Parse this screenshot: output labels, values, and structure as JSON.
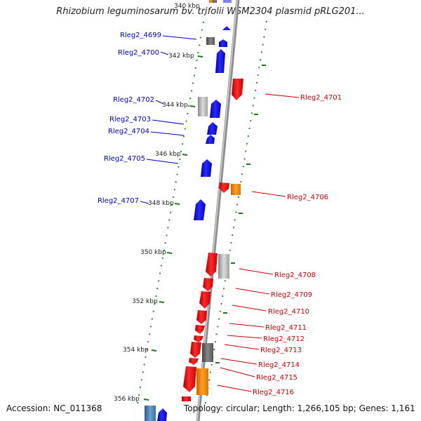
{
  "title": "Rhizobium leguminosarum bv. trifolii WSM2304 plasmid pRLG201...",
  "footer": {
    "accession_label": "Accession:",
    "accession": "NC_011368",
    "topology_label": "Topology:",
    "topology": "circular",
    "length_label": "Length:",
    "length": "1,266,105 bp",
    "genes_label": "Genes:",
    "genes": "1,161"
  },
  "colors": {
    "forward_gene": "#0000ff",
    "reverse_gene": "#ff0000",
    "forward_label": "#0000cc",
    "reverse_label": "#cc0000",
    "backbone": "#999999",
    "tick": "#228b22"
  },
  "scale_labels": [
    "340 kbp",
    "342 kbp",
    "344 kbp",
    "346 kbp",
    "348 kbp",
    "350 kbp",
    "352 kbp",
    "354 kbp",
    "356 kbp"
  ],
  "genes_left": [
    {
      "label": "Rleg2_4699"
    },
    {
      "label": "Rleg2_4700"
    },
    {
      "label": "Rleg2_4702"
    },
    {
      "label": "Rleg2_4703"
    },
    {
      "label": "Rleg2_4704"
    },
    {
      "label": "Rleg2_4705"
    },
    {
      "label": "Rleg2_4707"
    }
  ],
  "genes_right": [
    {
      "label": "Rleg2_4701"
    },
    {
      "label": "Rleg2_4706"
    },
    {
      "label": "Rleg2_4708"
    },
    {
      "label": "Rleg2_4709"
    },
    {
      "label": "Rleg2_4710"
    },
    {
      "label": "Rleg2_4711"
    },
    {
      "label": "Rleg2_4712"
    },
    {
      "label": "Rleg2_4713"
    },
    {
      "label": "Rleg2_4714"
    },
    {
      "label": "Rleg2_4715"
    },
    {
      "label": "Rleg2_4716"
    }
  ]
}
